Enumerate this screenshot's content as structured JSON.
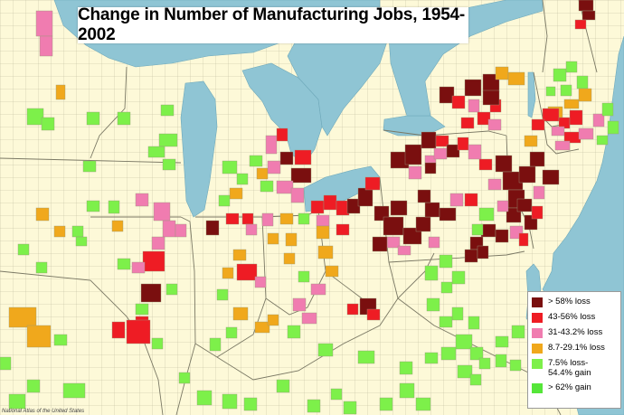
{
  "title": "Change in Number of Manufacturing Jobs, 1954-2002",
  "credit": "National Atlas of the United States",
  "colors": {
    "land": "#fdf9d8",
    "water": "#8fc5d4",
    "border": "#9a9a7a"
  },
  "legend": [
    {
      "label": "> 58% loss",
      "color": "#7a0f0f"
    },
    {
      "label": "43-56% loss",
      "color": "#ee1c24"
    },
    {
      "label": "31-43.2% loss",
      "color": "#f07cb0"
    },
    {
      "label": "8.7-29.1% loss",
      "color": "#f0a81c"
    },
    {
      "label": "7.5% loss-\n54.4% gain",
      "color": "#7df04a"
    },
    {
      "label": "> 62% gain",
      "color": "#55e639"
    }
  ]
}
